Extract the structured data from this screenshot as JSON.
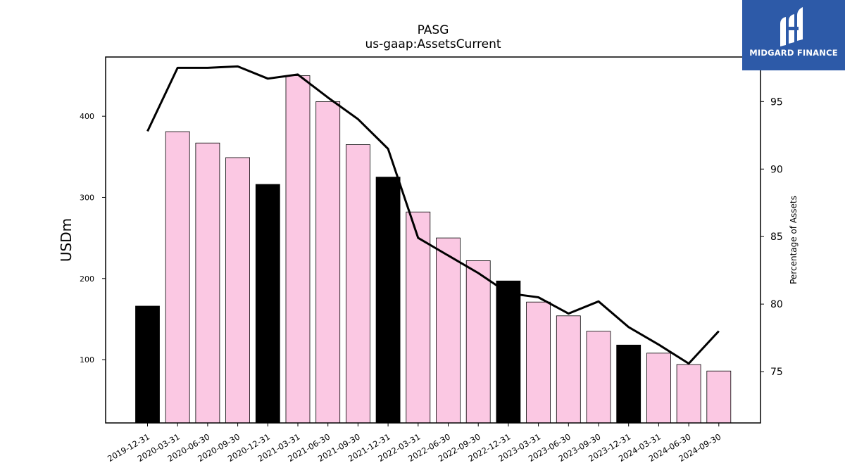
{
  "chart_data": {
    "type": "bar+line",
    "title": "PASG",
    "subtitle": "us-gaap:AssetsCurrent",
    "ylabel_left": "USDm",
    "ylabel_right": "Percentage of Assets",
    "categories": [
      "2019-12-31",
      "2020-03-31",
      "2020-06-30",
      "2020-09-30",
      "2020-12-31",
      "2021-03-31",
      "2021-06-30",
      "2021-09-30",
      "2021-12-31",
      "2022-03-31",
      "2022-06-30",
      "2022-09-30",
      "2022-12-31",
      "2023-03-31",
      "2023-06-30",
      "2023-09-30",
      "2023-12-31",
      "2024-03-31",
      "2024-06-30",
      "2024-09-30"
    ],
    "bars": {
      "values": [
        166,
        381,
        367,
        349,
        316,
        450,
        418,
        365,
        325,
        282,
        250,
        222,
        197,
        171,
        154,
        135,
        118,
        108,
        94,
        86
      ],
      "highlight_color": "#000000",
      "default_color": "#fbc8e3",
      "highlighted": [
        0,
        4,
        8,
        12,
        16
      ]
    },
    "line": {
      "values": [
        92.8,
        97.5,
        97.5,
        97.6,
        96.7,
        97.0,
        95.3,
        93.7,
        91.5,
        84.9,
        83.6,
        82.3,
        80.8,
        80.5,
        79.3,
        80.2,
        78.3,
        77.0,
        75.6,
        78.0
      ],
      "color": "#000000"
    },
    "ylim_left": [
      22,
      473
    ],
    "yticks_left": [
      100,
      200,
      300,
      400
    ],
    "ylim_right": [
      71.2,
      98.3
    ],
    "yticks_right": [
      75,
      80,
      85,
      90,
      95
    ],
    "grid": false
  },
  "logo": {
    "text": "MIDGARD FINANCE"
  }
}
